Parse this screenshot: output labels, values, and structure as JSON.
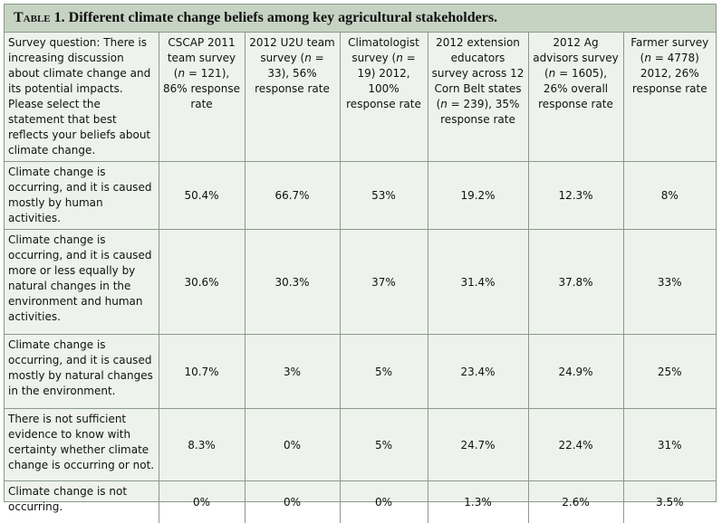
{
  "table": {
    "title_prefix": "Table 1.",
    "title_text": " Different climate change beliefs among key agricultural stakeholders.",
    "question_header": "Survey question: There is increasing discussion about climate change and its potential impacts. Please select the statement that best reflects your beliefs about climate change.",
    "columns": [
      "CSCAP 2011 team survey (n = 121), 86% response rate",
      "2012 U2U team survey (n = 33), 56% response rate",
      "Climatologist survey (n = 19) 2012, 100% response rate",
      "2012 extension educators survey across 12 Corn Belt states (n = 239), 35% response rate",
      "2012 Ag advisors survey (n = 1605), 26% overall response rate",
      "Farmer survey (n = 4778) 2012, 26% response rate"
    ],
    "rows": [
      {
        "statement": "Climate change is occurring, and it is caused mostly by human activities.",
        "values": [
          "50.4%",
          "66.7%",
          "53%",
          "19.2%",
          "12.3%",
          "8%"
        ]
      },
      {
        "statement": "Climate change is occurring, and it is caused more or less equally by natural changes in the environment and human activities.",
        "values": [
          "30.6%",
          "30.3%",
          "37%",
          "31.4%",
          "37.8%",
          "33%"
        ]
      },
      {
        "statement": "Climate change is occurring, and it is caused mostly by natural changes in the environment.",
        "values": [
          "10.7%",
          "3%",
          "5%",
          "23.4%",
          "24.9%",
          "25%"
        ]
      },
      {
        "statement": "There is not sufficient evidence to know with certainty whether climate change is occurring or not.",
        "values": [
          "8.3%",
          "0%",
          "5%",
          "24.7%",
          "22.4%",
          "31%"
        ]
      },
      {
        "statement": "Climate change is not occurring.",
        "values": [
          "0%",
          "0%",
          "0%",
          "1.3%",
          "2.6%",
          "3.5%"
        ]
      }
    ]
  }
}
